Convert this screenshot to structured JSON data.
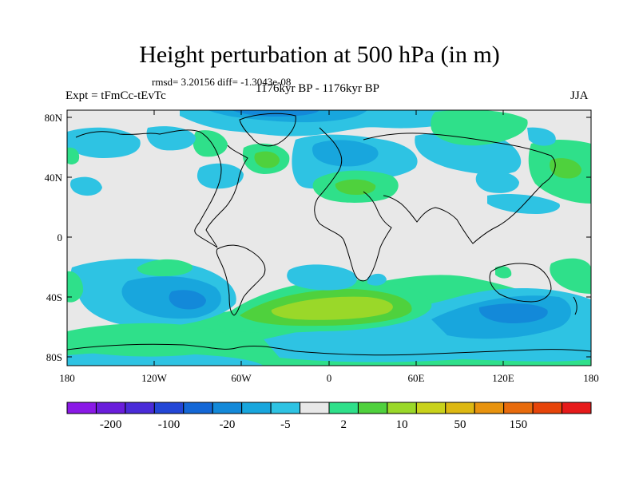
{
  "title": "Height perturbation at 500 hPa (in m)",
  "stats": "rmsd= 3.20156  diff= -1.3043e-08",
  "expt": "Expt = tFmCc-tEvTc",
  "period": "1176kyr BP - 1176kyr BP",
  "season": "JJA",
  "lat_labels": [
    "80N",
    "40N",
    "0",
    "40S",
    "80S"
  ],
  "lon_labels": [
    "180",
    "120W",
    "60W",
    "0",
    "60E",
    "120E",
    "180"
  ],
  "colorbar": {
    "labels": [
      "-200",
      "-100",
      "-20",
      "-5",
      "2",
      "10",
      "50",
      "150"
    ],
    "colors": [
      "#8a19e6",
      "#6a1ddb",
      "#4a2bd8",
      "#2346d6",
      "#1467d6",
      "#1389d9",
      "#18a6dd",
      "#2ec3e3",
      "#e8e8e8",
      "#2fe08a",
      "#4fd13d",
      "#9ad829",
      "#c9d21b",
      "#ddb812",
      "#e8930e",
      "#e86b0c",
      "#e64409",
      "#e61a1a"
    ]
  },
  "colors": {
    "background": "#e8e8e8",
    "light_blue": "#2ec3e3",
    "mid_blue": "#18a6dd",
    "dark_blue": "#1389d9",
    "green": "#2fe08a",
    "lime": "#4fd13d",
    "yellow_green": "#9ad829"
  }
}
